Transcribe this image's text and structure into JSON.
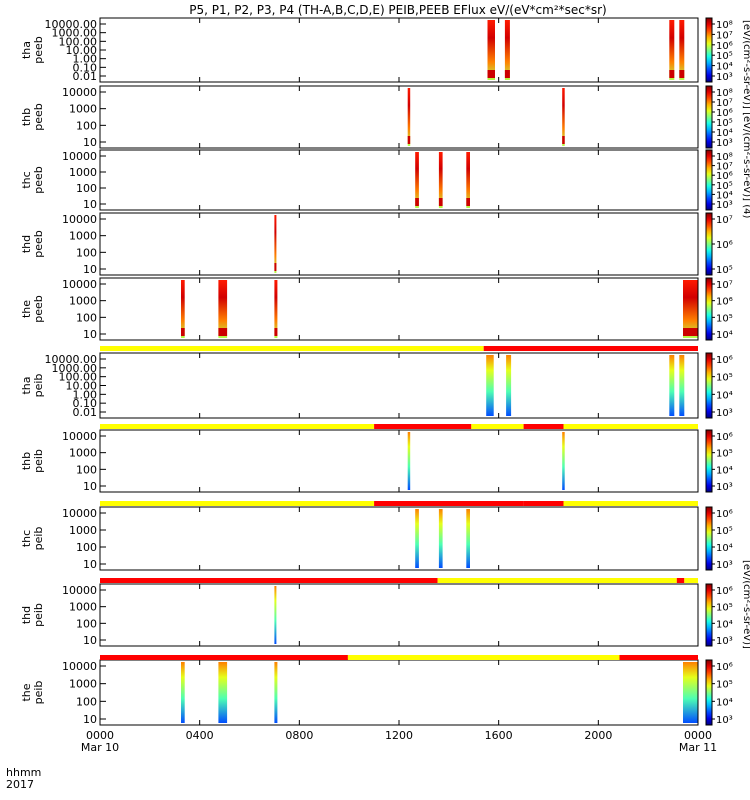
{
  "chart_data": {
    "type": "heatmap",
    "title": "P5, P1, P2, P3, P4 (TH-A,B,C,D,E) PEIB,PEEB EFlux eV/(eV*cm²*sec*sr)",
    "colorbar_label_e": "eV/(eV*cm²*sec*sr)",
    "colorbar_label_e_full": "[eV/(cm²-s-sr-eV)] [eV/(cm²-s-sr-eV)] (4)",
    "colorbar_label_i": "[eV/(cm²-s-sr-eV)]",
    "x_axis": {
      "corner_top": "hhmm",
      "corner_bottom": "2017",
      "xlim": [
        0,
        24
      ],
      "ticks": [
        0,
        4,
        8,
        12,
        16,
        20,
        24
      ],
      "tick_labels": [
        "0000",
        "0400",
        "0800",
        "1200",
        "1600",
        "2000",
        "0000"
      ],
      "date_labels": [
        "Mar 10",
        "Mar 11"
      ]
    },
    "panels": [
      {
        "probe": "tha",
        "inst": "peeb",
        "yscale": "log",
        "yticks": [
          "10000.00",
          "1000.00",
          "100.00",
          "10.00",
          "1.00",
          "0.10",
          "0.01"
        ],
        "cbar_ticks": [
          "10⁸",
          "10⁷",
          "10⁶",
          "10⁵",
          "10⁴",
          "10³"
        ],
        "bursts": [
          [
            15.55,
            15.85
          ],
          [
            16.25,
            16.45
          ],
          [
            22.85,
            23.05
          ],
          [
            23.25,
            23.45
          ]
        ]
      },
      {
        "probe": "thb",
        "inst": "peeb",
        "yscale": "log",
        "yticks": [
          "10000",
          "1000",
          "100",
          "10"
        ],
        "cbar_ticks": [
          "10⁸",
          "10⁷",
          "10⁶",
          "10⁵",
          "10⁴",
          "10³"
        ],
        "bursts": [
          [
            12.35,
            12.45
          ],
          [
            18.55,
            18.65
          ]
        ]
      },
      {
        "probe": "thc",
        "inst": "peeb",
        "yscale": "log",
        "yticks": [
          "10000",
          "1000",
          "100",
          "10"
        ],
        "cbar_ticks": [
          "10⁸",
          "10⁷",
          "10⁶",
          "10⁵",
          "10⁴",
          "10³"
        ],
        "bursts": [
          [
            12.65,
            12.8
          ],
          [
            13.6,
            13.75
          ],
          [
            14.7,
            14.85
          ]
        ]
      },
      {
        "probe": "thd",
        "inst": "peeb",
        "yscale": "log",
        "yticks": [
          "10000",
          "1000",
          "100",
          "10"
        ],
        "cbar_ticks": [
          "10⁷",
          "10⁶",
          "10⁵"
        ],
        "bursts": [
          [
            7.0,
            7.08
          ]
        ]
      },
      {
        "probe": "the",
        "inst": "peeb",
        "yscale": "log",
        "yticks": [
          "10000",
          "1000",
          "100",
          "10"
        ],
        "cbar_ticks": [
          "10⁷",
          "10⁶",
          "10⁵",
          "10⁴"
        ],
        "bursts": [
          [
            3.25,
            3.4
          ],
          [
            4.75,
            5.1
          ],
          [
            7.0,
            7.12
          ],
          [
            23.4,
            24.0
          ]
        ]
      },
      {
        "probe": "tha",
        "inst": "peib",
        "yscale": "log",
        "yticks": [
          "10000.00",
          "1000.00",
          "100.00",
          "10.00",
          "1.00",
          "0.10",
          "0.01"
        ],
        "cbar_ticks": [
          "10⁶",
          "10⁵",
          "10⁴",
          "10³"
        ],
        "bursts": [
          [
            15.5,
            15.8
          ],
          [
            16.3,
            16.5
          ],
          [
            22.85,
            23.05
          ],
          [
            23.25,
            23.45
          ]
        ]
      },
      {
        "probe": "thb",
        "inst": "peib",
        "yscale": "log",
        "yticks": [
          "10000",
          "1000",
          "100",
          "10"
        ],
        "cbar_ticks": [
          "10⁶",
          "10⁵",
          "10⁴",
          "10³"
        ],
        "bursts": [
          [
            12.35,
            12.45
          ],
          [
            18.55,
            18.65
          ]
        ]
      },
      {
        "probe": "thc",
        "inst": "peib",
        "yscale": "log",
        "yticks": [
          "10000",
          "1000",
          "100",
          "10"
        ],
        "cbar_ticks": [
          "10⁶",
          "10⁵",
          "10⁴",
          "10³"
        ],
        "bursts": [
          [
            12.65,
            12.8
          ],
          [
            13.6,
            13.75
          ],
          [
            14.7,
            14.85
          ]
        ]
      },
      {
        "probe": "thd",
        "inst": "peib",
        "yscale": "log",
        "yticks": [
          "10000",
          "1000",
          "100",
          "10"
        ],
        "cbar_ticks": [
          "10⁶",
          "10⁵",
          "10⁴",
          "10³"
        ],
        "bursts": [
          [
            7.0,
            7.08
          ]
        ]
      },
      {
        "probe": "the",
        "inst": "peib",
        "yscale": "log",
        "yticks": [
          "10000",
          "1000",
          "100",
          "10"
        ],
        "cbar_ticks": [
          "10⁶",
          "10⁵",
          "10⁴",
          "10³"
        ],
        "bursts": [
          [
            3.25,
            3.4
          ],
          [
            4.75,
            5.1
          ],
          [
            7.0,
            7.12
          ],
          [
            23.4,
            24.0
          ]
        ]
      }
    ],
    "mode_bars": [
      {
        "segments": [
          {
            "from": 0,
            "to": 15.4,
            "color": "#ffff00"
          },
          {
            "from": 15.4,
            "to": 24,
            "color": "#ff0000"
          }
        ]
      },
      {
        "segments": [
          {
            "from": 0,
            "to": 11.0,
            "color": "#ffff00"
          },
          {
            "from": 11.0,
            "to": 14.9,
            "color": "#ff0000"
          },
          {
            "from": 14.9,
            "to": 17.0,
            "color": "#ffff00"
          },
          {
            "from": 17.0,
            "to": 18.6,
            "color": "#ff0000"
          },
          {
            "from": 18.6,
            "to": 24,
            "color": "#ffff00"
          }
        ]
      },
      {
        "segments": [
          {
            "from": 0,
            "to": 11.0,
            "color": "#ffff00"
          },
          {
            "from": 11.0,
            "to": 17.0,
            "color": "#ff0000"
          },
          {
            "from": 17.0,
            "to": 18.6,
            "color": "#ff0000"
          },
          {
            "from": 18.6,
            "to": 24,
            "color": "#ffff00"
          }
        ]
      },
      {
        "segments": [
          {
            "from": 0,
            "to": 13.55,
            "color": "#ff0000"
          },
          {
            "from": 13.55,
            "to": 23.15,
            "color": "#ffff00"
          },
          {
            "from": 23.15,
            "to": 23.45,
            "color": "#ff0000"
          },
          {
            "from": 23.45,
            "to": 24,
            "color": "#ffff00"
          }
        ]
      },
      {
        "segments": [
          {
            "from": 0,
            "to": 9.95,
            "color": "#ff0000"
          },
          {
            "from": 9.95,
            "to": 20.85,
            "color": "#ffff00"
          },
          {
            "from": 20.85,
            "to": 24,
            "color": "#ff0000"
          }
        ]
      }
    ]
  }
}
